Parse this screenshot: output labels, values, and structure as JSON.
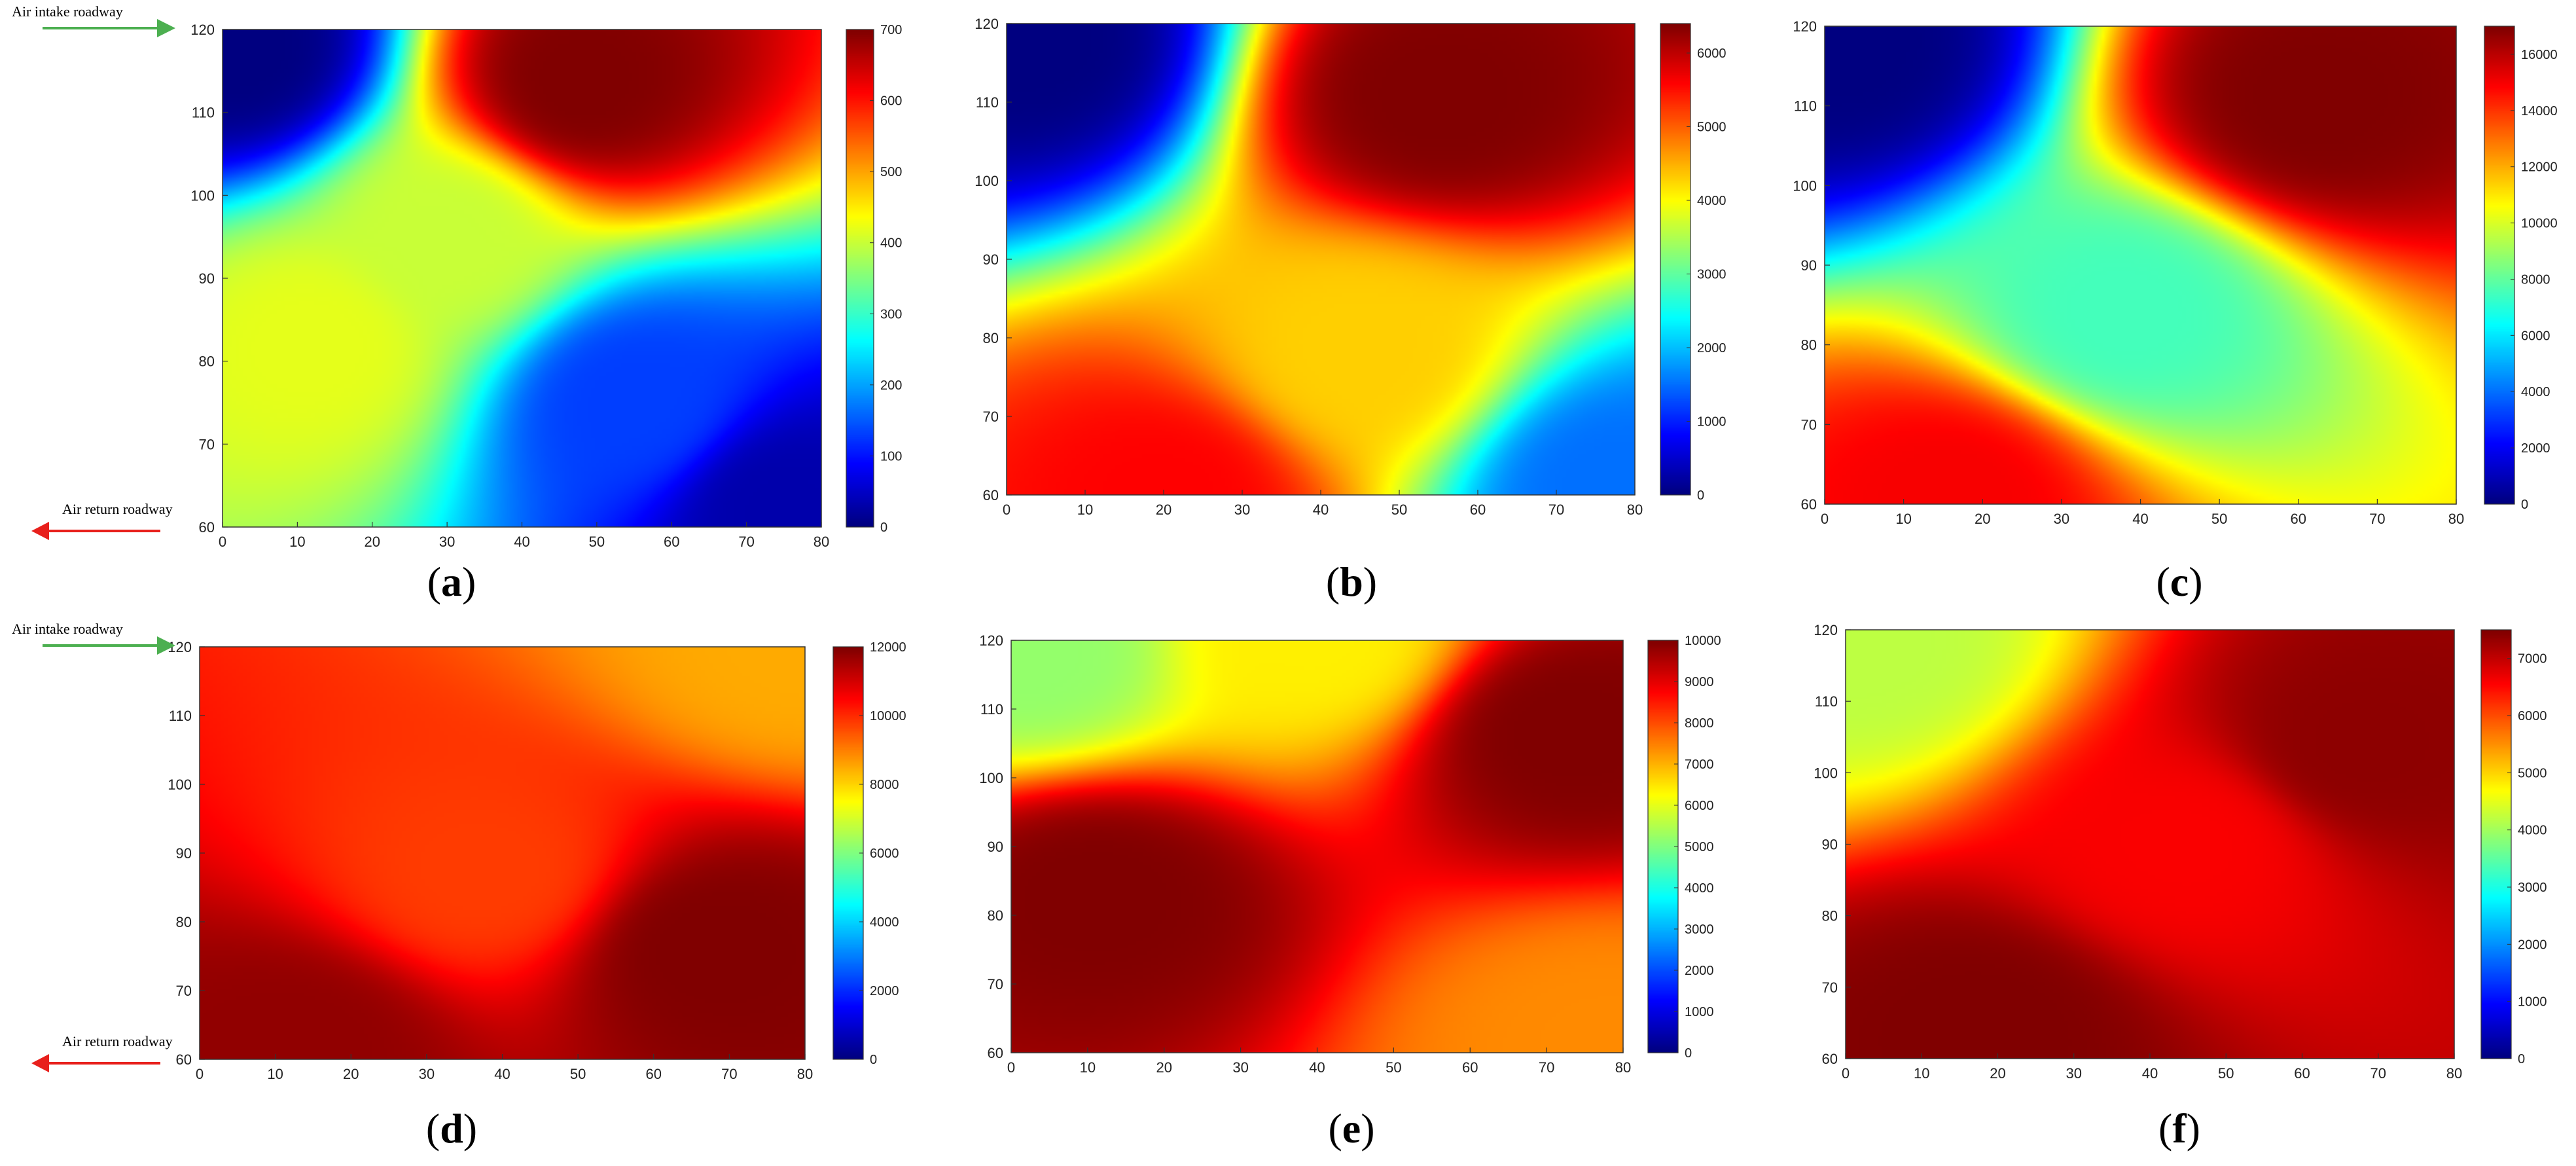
{
  "roadway_labels": {
    "intake": "Air intake roadway",
    "return": "Air return roadway",
    "intake_color": "#4caf50",
    "return_color": "#e8201c"
  },
  "colormap": "jet",
  "chart_data": [
    {
      "type": "heatmap",
      "panel_label": "(a)",
      "panel_letter": "a",
      "x_range": [
        0,
        80
      ],
      "y_range": [
        60,
        120
      ],
      "x_ticks": [
        "0",
        "10",
        "20",
        "30",
        "40",
        "50",
        "60",
        "70",
        "80"
      ],
      "y_ticks": [
        "60",
        "70",
        "80",
        "90",
        "100",
        "110",
        "120"
      ],
      "colorbar_range": [
        0,
        700
      ],
      "colorbar_ticks": [
        "0",
        "100",
        "200",
        "300",
        "400",
        "500",
        "600",
        "700"
      ],
      "has_roadway_labels": true,
      "hotspots": [
        {
          "x": 48,
          "y": 114,
          "value": 700
        },
        {
          "x": 12,
          "y": 82,
          "value": 420
        },
        {
          "x": 30,
          "y": 95,
          "value": 400
        },
        {
          "x": 2,
          "y": 118,
          "value": 0
        },
        {
          "x": 75,
          "y": 62,
          "value": 30
        },
        {
          "x": 55,
          "y": 75,
          "value": 130
        }
      ]
    },
    {
      "type": "heatmap",
      "panel_label": "(b)",
      "panel_letter": "b",
      "x_range": [
        0,
        80
      ],
      "y_range": [
        60,
        120
      ],
      "x_ticks": [
        "0",
        "10",
        "20",
        "30",
        "40",
        "50",
        "60",
        "70",
        "80"
      ],
      "y_ticks": [
        "60",
        "70",
        "80",
        "90",
        "100",
        "110",
        "120"
      ],
      "colorbar_range": [
        0,
        6400
      ],
      "colorbar_ticks": [
        "0",
        "1000",
        "2000",
        "3000",
        "4000",
        "5000",
        "6000"
      ],
      "has_roadway_labels": false,
      "hotspots": [
        {
          "x": 55,
          "y": 111,
          "value": 6400
        },
        {
          "x": 20,
          "y": 60,
          "value": 5600
        },
        {
          "x": 3,
          "y": 118,
          "value": 0
        },
        {
          "x": 45,
          "y": 78,
          "value": 4300
        },
        {
          "x": 78,
          "y": 61,
          "value": 1500
        }
      ]
    },
    {
      "type": "heatmap",
      "panel_label": "(c)",
      "panel_letter": "c",
      "x_range": [
        0,
        80
      ],
      "y_range": [
        60,
        120
      ],
      "x_ticks": [
        "0",
        "10",
        "20",
        "30",
        "40",
        "50",
        "60",
        "70",
        "80"
      ],
      "y_ticks": [
        "60",
        "70",
        "80",
        "90",
        "100",
        "110",
        "120"
      ],
      "colorbar_range": [
        0,
        17000
      ],
      "colorbar_ticks": [
        "0",
        "2000",
        "4000",
        "6000",
        "8000",
        "10000",
        "12000",
        "14000",
        "16000"
      ],
      "has_roadway_labels": false,
      "hotspots": [
        {
          "x": 62,
          "y": 111,
          "value": 17000
        },
        {
          "x": 38,
          "y": 84,
          "value": 7500
        },
        {
          "x": 2,
          "y": 118,
          "value": 0
        },
        {
          "x": 16,
          "y": 61,
          "value": 15000
        }
      ]
    },
    {
      "type": "heatmap",
      "panel_label": "(d)",
      "panel_letter": "d",
      "x_range": [
        0,
        80
      ],
      "y_range": [
        60,
        120
      ],
      "x_ticks": [
        "0",
        "10",
        "20",
        "30",
        "40",
        "50",
        "60",
        "70",
        "80"
      ],
      "y_ticks": [
        "60",
        "70",
        "80",
        "90",
        "100",
        "110",
        "120"
      ],
      "colorbar_range": [
        0,
        12000
      ],
      "colorbar_ticks": [
        "0",
        "2000",
        "4000",
        "6000",
        "8000",
        "10000",
        "12000"
      ],
      "has_roadway_labels": true,
      "hotspots": [
        {
          "x": 68,
          "y": 76,
          "value": 12000
        },
        {
          "x": 12,
          "y": 62,
          "value": 11800
        },
        {
          "x": 38,
          "y": 87,
          "value": 9800
        },
        {
          "x": 80,
          "y": 120,
          "value": 8500
        }
      ]
    },
    {
      "type": "heatmap",
      "panel_label": "(e)",
      "panel_letter": "e",
      "x_range": [
        0,
        80
      ],
      "y_range": [
        60,
        120
      ],
      "x_ticks": [
        "0",
        "10",
        "20",
        "30",
        "40",
        "50",
        "60",
        "70",
        "80"
      ],
      "y_ticks": [
        "60",
        "70",
        "80",
        "90",
        "100",
        "110",
        "120"
      ],
      "colorbar_range": [
        0,
        10000
      ],
      "colorbar_ticks": [
        "0",
        "1000",
        "2000",
        "3000",
        "4000",
        "5000",
        "6000",
        "7000",
        "8000",
        "9000",
        "10000"
      ],
      "has_roadway_labels": false,
      "hotspots": [
        {
          "x": 11,
          "y": 83,
          "value": 10000
        },
        {
          "x": 73,
          "y": 107,
          "value": 10000
        },
        {
          "x": 2,
          "y": 118,
          "value": 5200
        },
        {
          "x": 40,
          "y": 120,
          "value": 6400
        },
        {
          "x": 78,
          "y": 62,
          "value": 7400
        }
      ]
    },
    {
      "type": "heatmap",
      "panel_label": "(f)",
      "panel_letter": "f",
      "x_range": [
        0,
        80
      ],
      "y_range": [
        60,
        120
      ],
      "x_ticks": [
        "0",
        "10",
        "20",
        "30",
        "40",
        "50",
        "60",
        "70",
        "80"
      ],
      "y_ticks": [
        "60",
        "70",
        "80",
        "90",
        "100",
        "110",
        "120"
      ],
      "colorbar_range": [
        0,
        7500
      ],
      "colorbar_ticks": [
        "0",
        "1000",
        "2000",
        "3000",
        "4000",
        "5000",
        "6000",
        "7000"
      ],
      "has_roadway_labels": false,
      "hotspots": [
        {
          "x": 18,
          "y": 64,
          "value": 7500
        },
        {
          "x": 68,
          "y": 104,
          "value": 7400
        },
        {
          "x": 2,
          "y": 118,
          "value": 4200
        },
        {
          "x": 45,
          "y": 90,
          "value": 6600
        }
      ]
    }
  ]
}
